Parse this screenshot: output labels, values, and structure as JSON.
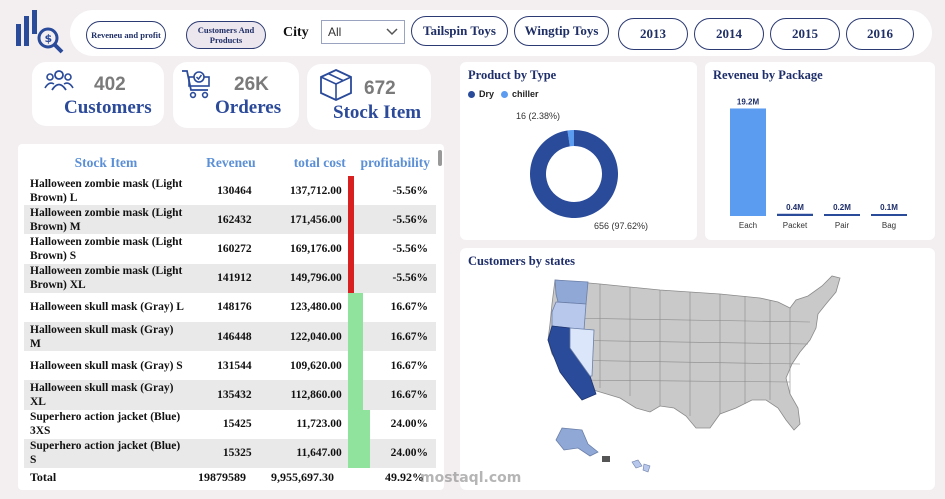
{
  "filters": {
    "measure_buttons": [
      "Reveneu and profit",
      "Customers And Products"
    ],
    "city_label": "City",
    "city_value": "All",
    "brand_buttons": [
      "Tailspin Toys",
      "Wingtip Toys"
    ],
    "year_buttons": [
      "2013",
      "2014",
      "2015",
      "2016"
    ]
  },
  "kpis": [
    {
      "value": "402",
      "label": "Customers",
      "icon": "people-icon"
    },
    {
      "value": "26K",
      "label": "Orderes",
      "icon": "cart-icon"
    },
    {
      "value": "672",
      "label": "Stock Item",
      "icon": "box-icon"
    }
  ],
  "table": {
    "headers": [
      "Stock Item",
      "Reveneu",
      "total cost",
      "profitability"
    ],
    "rows": [
      {
        "name": "Halloween zombie mask (Light Brown) L",
        "rev": "130464",
        "cost": "137,712.00",
        "prof": "-5.56%",
        "p": -5.56
      },
      {
        "name": "Halloween zombie mask (Light Brown) M",
        "rev": "162432",
        "cost": "171,456.00",
        "prof": "-5.56%",
        "p": -5.56
      },
      {
        "name": "Halloween zombie mask (Light Brown) S",
        "rev": "160272",
        "cost": "169,176.00",
        "prof": "-5.56%",
        "p": -5.56
      },
      {
        "name": "Halloween zombie mask (Light Brown) XL",
        "rev": "141912",
        "cost": "149,796.00",
        "prof": "-5.56%",
        "p": -5.56
      },
      {
        "name": "Halloween skull mask (Gray) L",
        "rev": "148176",
        "cost": "123,480.00",
        "prof": "16.67%",
        "p": 16.67
      },
      {
        "name": "Halloween skull mask (Gray) M",
        "rev": "146448",
        "cost": "122,040.00",
        "prof": "16.67%",
        "p": 16.67
      },
      {
        "name": "Halloween skull mask (Gray) S",
        "rev": "131544",
        "cost": "109,620.00",
        "prof": "16.67%",
        "p": 16.67
      },
      {
        "name": "Halloween skull mask (Gray) XL",
        "rev": "135432",
        "cost": "112,860.00",
        "prof": "16.67%",
        "p": 16.67
      },
      {
        "name": "Superhero action jacket (Blue) 3XS",
        "rev": "15425",
        "cost": "11,723.00",
        "prof": "24.00%",
        "p": 24.0
      },
      {
        "name": "Superhero action jacket (Blue) S",
        "rev": "15325",
        "cost": "11,647.00",
        "prof": "24.00%",
        "p": 24.0
      }
    ],
    "total": {
      "label": "Total",
      "rev": "19879589",
      "cost": "9,955,697.30",
      "prof": "49.92%"
    }
  },
  "product_by_type": {
    "title": "Product by Type",
    "chart_data": {
      "type": "pie",
      "labels": [
        "Dry",
        "chiller"
      ],
      "values": [
        656,
        16
      ],
      "percent_labels": [
        "656 (97.62%)",
        "16 (2.38%)"
      ],
      "colors": [
        "#2a4a9a",
        "#5b9bf0"
      ],
      "legend": "top-left"
    }
  },
  "revenue_by_package": {
    "title": "Reveneu by Package",
    "chart_data": {
      "type": "bar",
      "categories": [
        "Each",
        "Packet",
        "Pair",
        "Bag"
      ],
      "values": [
        19.2,
        0.4,
        0.2,
        0.1
      ],
      "data_labels": [
        "19.2M",
        "0.4M",
        "0.2M",
        "0.1M"
      ],
      "ylim": [
        0,
        20
      ],
      "colors": [
        "#5b9bf0",
        "#2a4a9a",
        "#2a4a9a",
        "#2a4a9a"
      ]
    }
  },
  "customers_by_states": {
    "title": "Customers by states"
  },
  "watermark": "mostaql.com",
  "colors": {
    "accent_dark": "#2a4a9a",
    "accent_light": "#5b9bf0",
    "negative": "#d7201f",
    "positive": "#90e39c"
  }
}
